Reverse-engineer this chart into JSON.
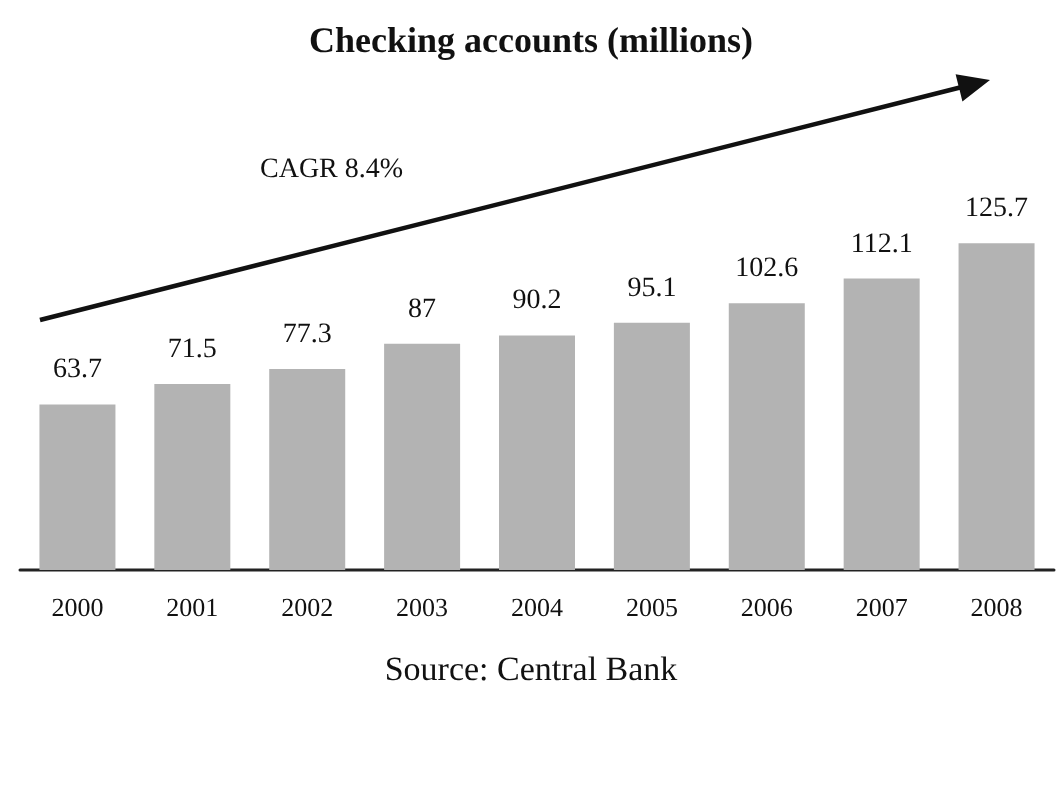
{
  "chart_data": {
    "type": "bar",
    "title": "Checking accounts (millions)",
    "categories": [
      "2000",
      "2001",
      "2002",
      "2003",
      "2004",
      "2005",
      "2006",
      "2007",
      "2008"
    ],
    "values": [
      63.7,
      71.5,
      77.3,
      87,
      90.2,
      95.1,
      102.6,
      112.1,
      125.7
    ],
    "color": "#b3b3b3",
    "data_labels": true,
    "annotations": [
      "CAGR 8.4%",
      "Source: Central Bank"
    ]
  }
}
